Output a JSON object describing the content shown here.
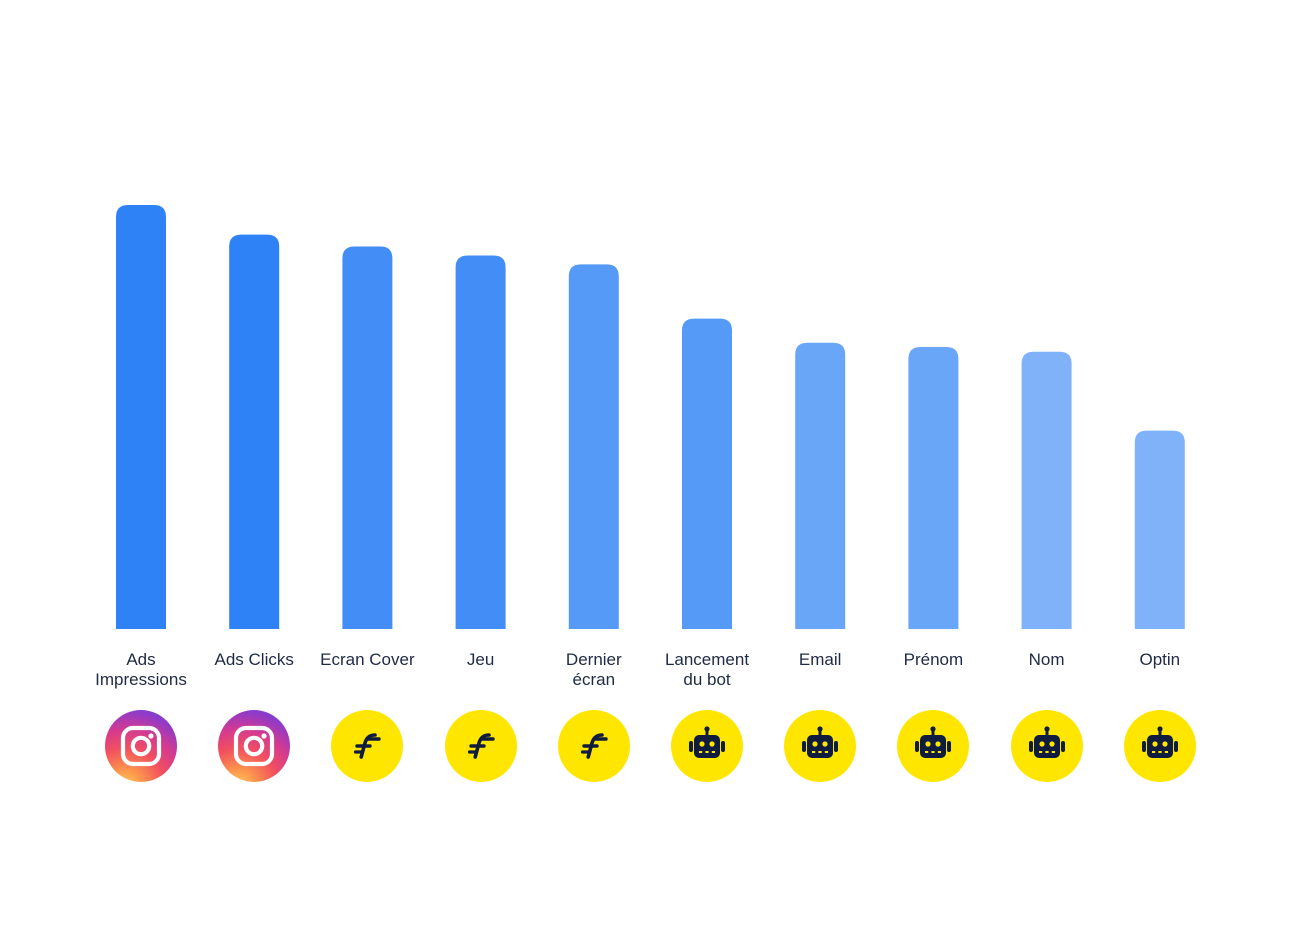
{
  "chart_data": {
    "type": "bar",
    "categories": [
      "Ads\nImpressions",
      "Ads Clicks",
      "Ecran Cover",
      "Jeu",
      "Dernier\nécran",
      "Lancement\ndu bot",
      "Email",
      "Prénom",
      "Nom",
      "Optin"
    ],
    "values": [
      100,
      93,
      90.2,
      88.1,
      86,
      73.2,
      67.5,
      66.5,
      65.4,
      46.8
    ],
    "ylim": [
      0,
      100
    ],
    "grid": false,
    "legend": "none",
    "title": "",
    "xlabel": "",
    "ylabel": "",
    "bar_colors": [
      "#2e82f5",
      "#2e82f5",
      "#428df6",
      "#428df6",
      "#559af7",
      "#559af7",
      "#6aa6f8",
      "#6aa6f8",
      "#7fb2f9",
      "#7fb2f9"
    ],
    "source_icons": [
      "instagram-icon",
      "instagram-icon",
      "funnel-logo-icon",
      "funnel-logo-icon",
      "funnel-logo-icon",
      "robot-icon",
      "robot-icon",
      "robot-icon",
      "robot-icon",
      "robot-icon"
    ]
  },
  "colors": {
    "label_text": "#1f2a44",
    "badge_yellow": "#ffe600",
    "badge_glyph": "#0f1c3d"
  }
}
